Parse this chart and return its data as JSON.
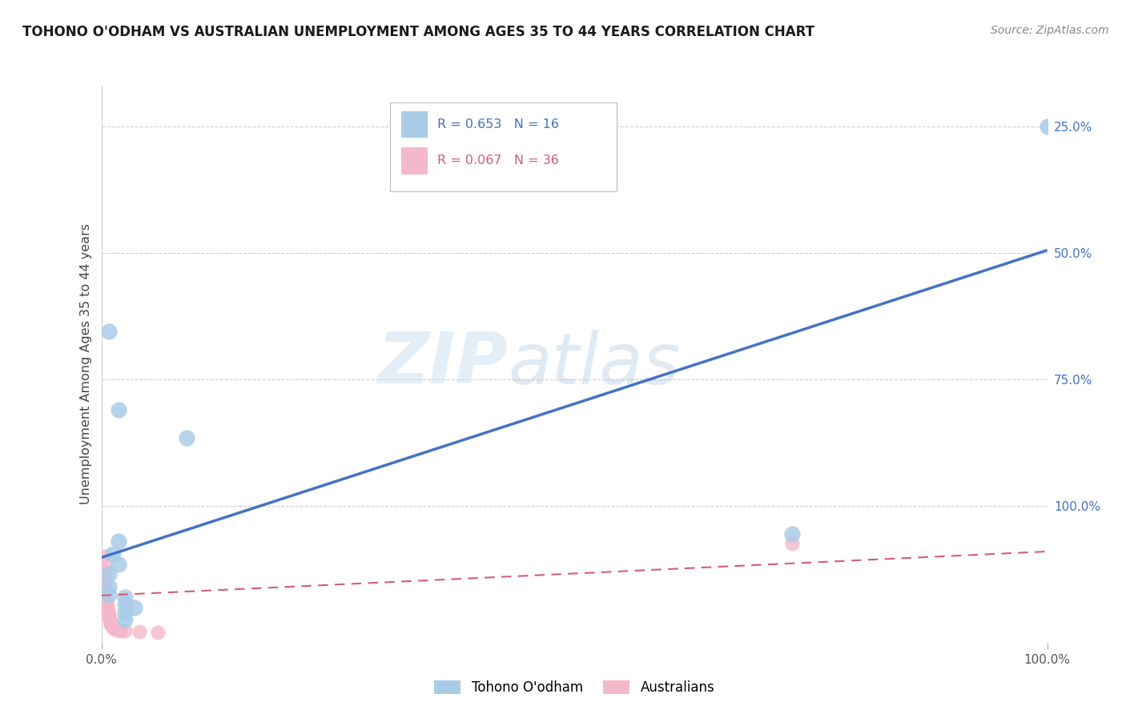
{
  "title": "TOHONO O'ODHAM VS AUSTRALIAN UNEMPLOYMENT AMONG AGES 35 TO 44 YEARS CORRELATION CHART",
  "source": "Source: ZipAtlas.com",
  "ylabel": "Unemployment Among Ages 35 to 44 years",
  "xlim": [
    0,
    1
  ],
  "ylim": [
    -0.02,
    1.08
  ],
  "legend_r1": "R = 0.653",
  "legend_n1": "N = 16",
  "legend_r2": "R = 0.067",
  "legend_n2": "N = 36",
  "blue_color": "#a8cce8",
  "pink_color": "#f5b8cb",
  "line_blue_color": "#4472c4",
  "line_pink_color": "#d45c7a",
  "watermark_zip": "ZIP",
  "watermark_atlas": "atlas",
  "tohono_points": [
    [
      0.008,
      0.595
    ],
    [
      0.018,
      0.44
    ],
    [
      0.09,
      0.385
    ],
    [
      0.018,
      0.18
    ],
    [
      0.012,
      0.155
    ],
    [
      0.018,
      0.135
    ],
    [
      0.008,
      0.115
    ],
    [
      0.008,
      0.09
    ],
    [
      0.008,
      0.075
    ],
    [
      0.025,
      0.07
    ],
    [
      0.025,
      0.055
    ],
    [
      0.035,
      0.05
    ],
    [
      0.025,
      0.04
    ],
    [
      0.025,
      0.025
    ],
    [
      0.73,
      0.195
    ],
    [
      1.0,
      1.0
    ]
  ],
  "aus_points": [
    [
      0.004,
      0.15
    ],
    [
      0.004,
      0.135
    ],
    [
      0.004,
      0.12
    ],
    [
      0.004,
      0.11
    ],
    [
      0.004,
      0.1
    ],
    [
      0.004,
      0.092
    ],
    [
      0.004,
      0.085
    ],
    [
      0.004,
      0.078
    ],
    [
      0.004,
      0.072
    ],
    [
      0.005,
      0.066
    ],
    [
      0.005,
      0.06
    ],
    [
      0.006,
      0.055
    ],
    [
      0.006,
      0.051
    ],
    [
      0.006,
      0.047
    ],
    [
      0.007,
      0.043
    ],
    [
      0.007,
      0.04
    ],
    [
      0.007,
      0.037
    ],
    [
      0.008,
      0.034
    ],
    [
      0.008,
      0.031
    ],
    [
      0.009,
      0.028
    ],
    [
      0.009,
      0.025
    ],
    [
      0.01,
      0.022
    ],
    [
      0.01,
      0.02
    ],
    [
      0.01,
      0.018
    ],
    [
      0.01,
      0.016
    ],
    [
      0.011,
      0.014
    ],
    [
      0.012,
      0.012
    ],
    [
      0.012,
      0.01
    ],
    [
      0.013,
      0.008
    ],
    [
      0.015,
      0.006
    ],
    [
      0.018,
      0.005
    ],
    [
      0.02,
      0.004
    ],
    [
      0.025,
      0.003
    ],
    [
      0.04,
      0.002
    ],
    [
      0.73,
      0.175
    ],
    [
      0.06,
      0.001
    ]
  ],
  "blue_line_x": [
    0,
    1.0
  ],
  "blue_line_y": [
    0.148,
    0.755
  ],
  "pink_line_x": [
    0,
    1.0
  ],
  "pink_line_y": [
    0.073,
    0.16
  ],
  "marker_size_blue": 200,
  "marker_size_pink": 160,
  "grid_color": "#cccccc",
  "grid_yticks": [
    0.25,
    0.5,
    0.75,
    1.0
  ]
}
